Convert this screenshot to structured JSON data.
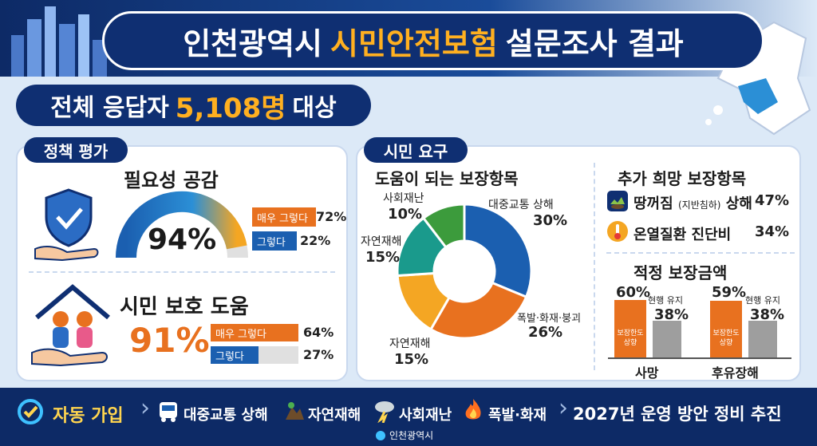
{
  "header": {
    "title_pre": "인천광역시",
    "title_highlight": "시민안전보험",
    "title_post": "설문조사 결과",
    "respondents_pre": "전체 응답자",
    "respondents_num": "5,108명",
    "respondents_post": "대상"
  },
  "policy": {
    "tag": "정책 평가",
    "necessity": {
      "title": "필요성 공감",
      "total": "94%",
      "total_value": 94,
      "items": [
        {
          "label": "매우 그렇다",
          "pct": "72%",
          "value": 72,
          "color": "#e8711f"
        },
        {
          "label": "그렇다",
          "pct": "22%",
          "value": 22,
          "color": "#1b5fb0"
        }
      ]
    },
    "protection": {
      "title": "시민 보호 도움",
      "total": "91%",
      "items": [
        {
          "label": "매우 그렇다",
          "pct": "64%",
          "value": 64,
          "color": "#e8711f"
        },
        {
          "label": "그렇다",
          "pct": "27%",
          "value": 27,
          "color": "#1b5fb0"
        }
      ]
    }
  },
  "citizen": {
    "tag": "시민 요구",
    "helpful": {
      "title": "도움이 되는 보장항목",
      "slices": [
        {
          "label": "대중교통 상해",
          "pct": "30%",
          "value": 30,
          "color": "#1b5fb0"
        },
        {
          "label": "폭발·화재·붕괴",
          "pct": "26%",
          "value": 26,
          "color": "#e8711f"
        },
        {
          "label": "자연재해",
          "pct": "15%",
          "value": 15,
          "color": "#f4a623"
        },
        {
          "label": "자연재해",
          "pct": "15%",
          "value": 15,
          "color": "#1a9a8c"
        },
        {
          "label": "사회재난",
          "pct": "10%",
          "value": 10,
          "color": "#3c9b3c"
        }
      ]
    },
    "additional": {
      "title": "추가 희망 보장항목",
      "items": [
        {
          "label": "땅꺼짐",
          "sub": "(지반침하)",
          "suffix": "상해",
          "pct": "47%"
        },
        {
          "label": "온열질환 진단비",
          "pct": "34%"
        }
      ]
    },
    "amount": {
      "title": "적정 보장금액",
      "groups": [
        {
          "name": "사망",
          "increase_label": "보장한도 상향",
          "increase_pct": "60%",
          "increase_value": 60,
          "keep_label": "현행 유지",
          "keep_pct": "38%",
          "keep_value": 38
        },
        {
          "name": "후유장해",
          "increase_label": "보장한도 상향",
          "increase_pct": "59%",
          "increase_value": 59,
          "keep_label": "현행 유지",
          "keep_pct": "38%",
          "keep_value": 38
        }
      ]
    }
  },
  "bottom": {
    "auto_join": "자동 가입",
    "items": [
      "대중교통 상해",
      "자연재해",
      "사회재난",
      "폭발·화재"
    ],
    "plan": "2027년 운영 방안 정비 추진",
    "logo_text": "인천광역시"
  }
}
